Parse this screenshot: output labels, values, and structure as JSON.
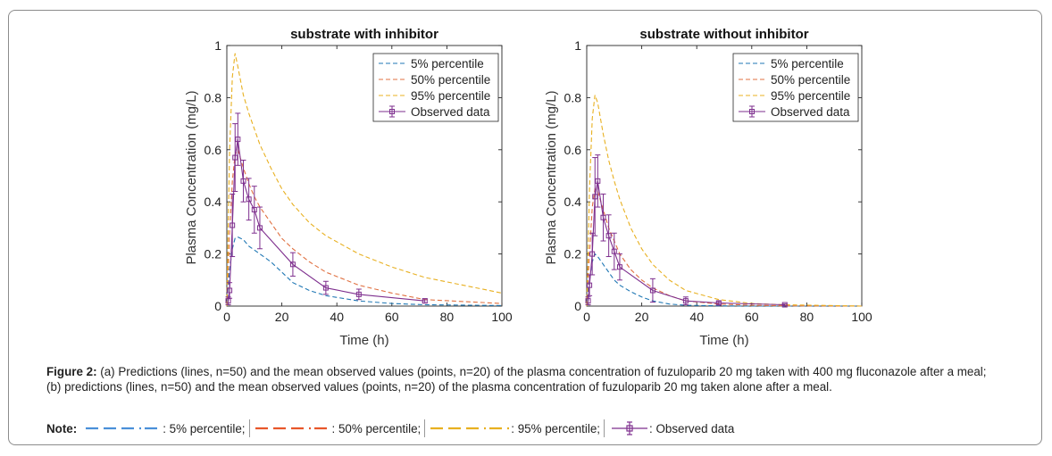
{
  "colors": {
    "p5": "#1f77b4",
    "p50": "#e07040",
    "p95": "#e8b020",
    "observed": "#7e2f8e",
    "note_p5": "#4a90d9",
    "note_p50": "#e8572a",
    "note_p95": "#e8b020"
  },
  "chart_data": [
    {
      "type": "line",
      "title": "substrate with inhibitor",
      "xlabel": "Time (h)",
      "ylabel": "Plasma Concentration (mg/L)",
      "xlim": [
        0,
        100
      ],
      "ylim": [
        0,
        1
      ],
      "xticks": [
        "0",
        "20",
        "40",
        "60",
        "80",
        "100"
      ],
      "yticks": [
        "0",
        "0.2",
        "0.4",
        "0.6",
        "0.8",
        "1"
      ],
      "legend_position": "top-right",
      "series": [
        {
          "name": "5% percentile",
          "style": "dashed",
          "x": [
            0,
            0.5,
            1,
            2,
            3,
            4,
            6,
            8,
            10,
            12,
            16,
            20,
            24,
            30,
            36,
            48,
            60,
            72,
            100
          ],
          "y": [
            0,
            0.07,
            0.14,
            0.22,
            0.26,
            0.265,
            0.255,
            0.23,
            0.215,
            0.2,
            0.17,
            0.13,
            0.09,
            0.06,
            0.04,
            0.02,
            0.01,
            0.005,
            0.002
          ]
        },
        {
          "name": "50% percentile",
          "style": "dashed",
          "x": [
            0,
            0.5,
            1,
            2,
            3,
            4,
            6,
            8,
            10,
            12,
            16,
            20,
            24,
            30,
            36,
            48,
            60,
            72,
            100
          ],
          "y": [
            0,
            0.12,
            0.28,
            0.48,
            0.58,
            0.6,
            0.53,
            0.47,
            0.42,
            0.38,
            0.32,
            0.26,
            0.22,
            0.17,
            0.13,
            0.08,
            0.05,
            0.025,
            0.01
          ]
        },
        {
          "name": "95% percentile",
          "style": "dashed",
          "x": [
            0,
            0.5,
            1,
            2,
            3,
            4,
            6,
            8,
            10,
            12,
            16,
            20,
            24,
            30,
            36,
            48,
            60,
            72,
            100
          ],
          "y": [
            0,
            0.3,
            0.6,
            0.88,
            0.97,
            0.92,
            0.81,
            0.74,
            0.68,
            0.62,
            0.53,
            0.45,
            0.39,
            0.32,
            0.27,
            0.2,
            0.15,
            0.11,
            0.05
          ]
        },
        {
          "name": "Observed data",
          "style": "solid-errorbar",
          "x": [
            0.5,
            1,
            2,
            3,
            4,
            6,
            8,
            10,
            12,
            24,
            36,
            48,
            72
          ],
          "y": [
            0.02,
            0.06,
            0.31,
            0.57,
            0.64,
            0.48,
            0.41,
            0.37,
            0.3,
            0.16,
            0.07,
            0.045,
            0.02
          ],
          "err": [
            0.015,
            0.03,
            0.12,
            0.13,
            0.1,
            0.08,
            0.08,
            0.09,
            0.08,
            0.045,
            0.025,
            0.02,
            0.008
          ]
        }
      ]
    },
    {
      "type": "line",
      "title": "substrate without inhibitor",
      "xlabel": "Time (h)",
      "ylabel": "Plasma Concentration (mg/L)",
      "xlim": [
        0,
        100
      ],
      "ylim": [
        0,
        1
      ],
      "xticks": [
        "0",
        "20",
        "40",
        "60",
        "80",
        "100"
      ],
      "yticks": [
        "0",
        "0.2",
        "0.4",
        "0.6",
        "0.8",
        "1"
      ],
      "legend_position": "top-right",
      "series": [
        {
          "name": "5% percentile",
          "style": "dashed",
          "x": [
            0,
            0.5,
            1,
            2,
            3,
            4,
            6,
            8,
            10,
            12,
            16,
            20,
            24,
            30,
            36,
            48,
            60,
            72,
            100
          ],
          "y": [
            0,
            0.05,
            0.1,
            0.17,
            0.2,
            0.19,
            0.16,
            0.13,
            0.1,
            0.08,
            0.055,
            0.035,
            0.02,
            0.008,
            0.003,
            0.001,
            0,
            0,
            0
          ]
        },
        {
          "name": "50% percentile",
          "style": "dashed",
          "x": [
            0,
            0.5,
            1,
            2,
            3,
            4,
            6,
            8,
            10,
            12,
            16,
            20,
            24,
            30,
            36,
            48,
            60,
            72,
            100
          ],
          "y": [
            0,
            0.1,
            0.2,
            0.38,
            0.45,
            0.44,
            0.37,
            0.3,
            0.25,
            0.2,
            0.14,
            0.1,
            0.07,
            0.04,
            0.02,
            0.008,
            0.003,
            0.001,
            0
          ]
        },
        {
          "name": "95% percentile",
          "style": "dashed",
          "x": [
            0,
            0.5,
            1,
            2,
            3,
            4,
            6,
            8,
            10,
            12,
            16,
            20,
            24,
            30,
            36,
            48,
            60,
            72,
            100
          ],
          "y": [
            0,
            0.2,
            0.45,
            0.72,
            0.81,
            0.78,
            0.66,
            0.56,
            0.48,
            0.41,
            0.3,
            0.22,
            0.16,
            0.1,
            0.06,
            0.025,
            0.01,
            0.005,
            0
          ]
        },
        {
          "name": "Observed data",
          "style": "solid-errorbar",
          "x": [
            0.5,
            1,
            2,
            3,
            4,
            6,
            8,
            10,
            12,
            24,
            36,
            48,
            72
          ],
          "y": [
            0.02,
            0.08,
            0.2,
            0.42,
            0.48,
            0.34,
            0.27,
            0.21,
            0.15,
            0.06,
            0.02,
            0.012,
            0.005
          ],
          "err": [
            0.015,
            0.04,
            0.08,
            0.15,
            0.1,
            0.09,
            0.08,
            0.07,
            0.05,
            0.045,
            0.015,
            0.006,
            0.003
          ]
        }
      ]
    }
  ],
  "caption": {
    "label": "Figure 2:",
    "text": " (a) Predictions (lines, n=50) and the mean observed values (points, n=20) of the plasma concentration of fuzuloparib 20 mg taken with 400 mg fluconazole after a meal; (b) predictions (lines, n=50) and the mean observed values (points, n=20) of the plasma concentration of fuzuloparib 20 mg taken alone after a meal."
  },
  "note": {
    "label": "Note:",
    "items": [
      ": 5% percentile;",
      ": 50% percentile;",
      ": 95% percentile;",
      ": Observed data"
    ]
  }
}
